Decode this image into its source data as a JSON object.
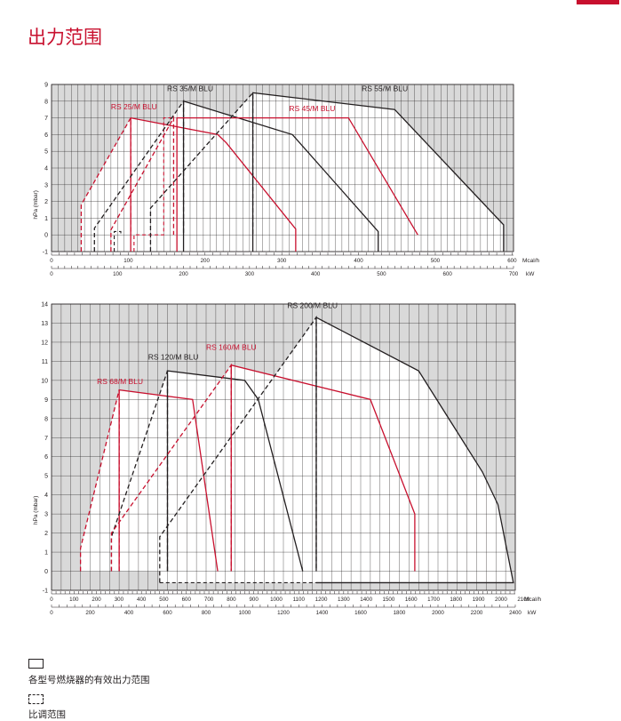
{
  "page": {
    "title": "出力范围",
    "legend": [
      {
        "label": "各型号燃烧器的有效出力范围",
        "style": "solid"
      },
      {
        "label": "比调范围",
        "style": "dashed"
      }
    ]
  },
  "colors": {
    "red": "#c8102e",
    "black": "#231f20",
    "grid_shade": "#d9d9d9",
    "plot_bg": "#ffffff"
  },
  "chart_data": [
    {
      "type": "area",
      "ylabel": "hPa (mbar)",
      "ylim": [
        -1,
        9
      ],
      "yticks": [
        -1,
        0,
        1,
        2,
        3,
        4,
        5,
        6,
        7,
        8,
        9
      ],
      "xlim": [
        0,
        700
      ],
      "x_unit": "kW",
      "xticks_kw": [
        0,
        100,
        200,
        300,
        400,
        500,
        600,
        700
      ],
      "mcal_unit": "Mcal/h",
      "mcal_ticks": [
        0,
        100,
        200,
        300,
        400,
        500,
        600
      ],
      "grid": true,
      "series": [
        {
          "name": "RS 25/M BLU",
          "color": "red",
          "label_pos": [
            90,
            7.5
          ],
          "solid": [
            [
              120,
              -1
            ],
            [
              120,
              7
            ],
            [
              252,
              6
            ],
            [
              265,
              5.5
            ],
            [
              370,
              0.35
            ],
            [
              370,
              -1
            ]
          ],
          "dashed": [
            [
              45,
              -1
            ],
            [
              45,
              1.8
            ],
            [
              120,
              7
            ],
            [
              120,
              0
            ]
          ],
          "inner": [
            [
              125,
              -1
            ],
            [
              125,
              0
            ],
            [
              170,
              0
            ],
            [
              170,
              7
            ],
            [
              183,
              7
            ]
          ]
        },
        {
          "name": "RS 35/M BLU",
          "color": "black",
          "label_pos": [
            175,
            8.6
          ],
          "solid": [
            [
              200,
              -1
            ],
            [
              200,
              8
            ],
            [
              365,
              6
            ],
            [
              495,
              0.2
            ],
            [
              495,
              -1
            ]
          ],
          "dashed": [
            [
              65,
              -1
            ],
            [
              65,
              0.4
            ],
            [
              200,
              8
            ],
            [
              200,
              0
            ]
          ],
          "inner": [
            [
              95,
              -1
            ],
            [
              95,
              0.2
            ],
            [
              105,
              0.2
            ],
            [
              105,
              0
            ]
          ]
        },
        {
          "name": "RS 45/M BLU",
          "color": "red",
          "label_pos": [
            360,
            7.4
          ],
          "solid": [
            [
              190,
              -1
            ],
            [
              190,
              7
            ],
            [
              450,
              7
            ],
            [
              555,
              0
            ]
          ],
          "dashed": [
            [
              90,
              -1
            ],
            [
              90,
              0.3
            ],
            [
              185,
              7
            ],
            [
              185,
              0
            ]
          ],
          "inner": []
        },
        {
          "name": "RS 55/M BLU",
          "color": "black",
          "label_pos": [
            470,
            8.6
          ],
          "solid": [
            [
              305,
              -1
            ],
            [
              305,
              8.5
            ],
            [
              520,
              7.5
            ],
            [
              685,
              0.6
            ],
            [
              685,
              -1
            ]
          ],
          "dashed": [
            [
              150,
              -1
            ],
            [
              150,
              0.3
            ],
            [
              150,
              1.6
            ],
            [
              305,
              8.5
            ],
            [
              305,
              0
            ]
          ],
          "inner": []
        }
      ]
    },
    {
      "type": "area",
      "ylabel": "hPa (mbar)",
      "ylim": [
        -1,
        14
      ],
      "yticks": [
        -1,
        0,
        1,
        2,
        3,
        4,
        5,
        6,
        7,
        8,
        9,
        10,
        11,
        12,
        13,
        14
      ],
      "xlim": [
        0,
        2400
      ],
      "x_unit": "kW",
      "xticks_kw": [
        0,
        200,
        400,
        600,
        800,
        1000,
        1200,
        1400,
        1600,
        1800,
        2000,
        2200,
        2400
      ],
      "mcal_unit": "Mcal/h",
      "mcal_ticks": [
        0,
        100,
        200,
        300,
        400,
        500,
        600,
        700,
        800,
        900,
        1000,
        1100,
        1200,
        1300,
        1400,
        1500,
        1600,
        1700,
        1800,
        1900,
        2000,
        2100
      ],
      "grid": true,
      "series": [
        {
          "name": "RS 68/M BLU",
          "color": "red",
          "label_pos": [
            235,
            9.8
          ],
          "solid": [
            [
              350,
              0
            ],
            [
              350,
              9.5
            ],
            [
              730,
              9
            ],
            [
              860,
              0
            ]
          ],
          "dashed": [
            [
              150,
              0
            ],
            [
              150,
              1.2
            ],
            [
              350,
              9.5
            ],
            [
              350,
              0
            ]
          ],
          "inner": []
        },
        {
          "name": "RS 120/M BLU",
          "color": "black",
          "label_pos": [
            500,
            11.1
          ],
          "solid": [
            [
              600,
              0
            ],
            [
              600,
              10.5
            ],
            [
              1000,
              10
            ],
            [
              1070,
              9
            ],
            [
              1300,
              0
            ]
          ],
          "dashed": [
            [
              310,
              0
            ],
            [
              310,
              1.8
            ],
            [
              600,
              10.5
            ],
            [
              600,
              0
            ]
          ],
          "inner": []
        },
        {
          "name": "RS 160/M BLU",
          "color": "red",
          "label_pos": [
            800,
            11.6
          ],
          "solid": [
            [
              930,
              0
            ],
            [
              930,
              10.8
            ],
            [
              1650,
              9
            ],
            [
              1880,
              3
            ],
            [
              1880,
              0
            ]
          ],
          "dashed": [
            [
              310,
              0
            ],
            [
              310,
              2
            ],
            [
              930,
              10.8
            ],
            [
              930,
              0
            ]
          ],
          "inner": []
        },
        {
          "name": "RS 200/M BLU",
          "color": "black",
          "label_pos": [
            1220,
            13.8
          ],
          "solid": [
            [
              1370,
              0
            ],
            [
              1370,
              13.3
            ],
            [
              1900,
              10.5
            ],
            [
              2230,
              5.2
            ],
            [
              2310,
              3.5
            ],
            [
              2390,
              -0.6
            ],
            [
              1370,
              -0.6
            ]
          ],
          "dashed": [
            [
              560,
              -0.6
            ],
            [
              560,
              0
            ],
            [
              560,
              1.8
            ],
            [
              1370,
              13.3
            ],
            [
              1370,
              0
            ]
          ],
          "inner": [
            [
              560,
              -0.6
            ],
            [
              1370,
              -0.6
            ]
          ]
        }
      ]
    }
  ]
}
